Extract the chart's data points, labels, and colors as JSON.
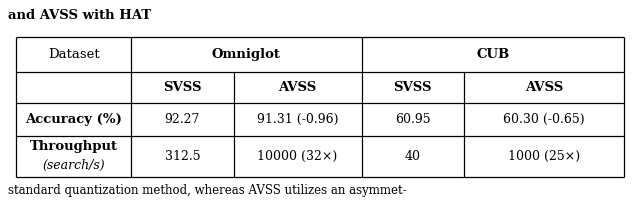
{
  "title": "and AVSS with HAT",
  "footer": "standard quantization method, whereas AVSS utilizes an asymmet-",
  "row1_values": [
    "92.27",
    "91.31 (-0.96)",
    "60.95",
    "60.30 (-0.65)"
  ],
  "row2_values": [
    "312.5",
    "10000 (32×)",
    "40",
    "1000 (25×)"
  ],
  "bg_color": "#ffffff",
  "text_color": "#000000",
  "border_color": "#000000",
  "title_fontsize": 9.5,
  "header_fontsize": 9.5,
  "cell_fontsize": 9.0,
  "footer_fontsize": 8.5,
  "col_bounds": [
    0.025,
    0.205,
    0.365,
    0.565,
    0.725,
    0.975
  ],
  "row_tops": [
    0.82,
    0.65,
    0.5,
    0.34
  ],
  "row_bots": [
    0.65,
    0.5,
    0.34,
    0.14
  ]
}
